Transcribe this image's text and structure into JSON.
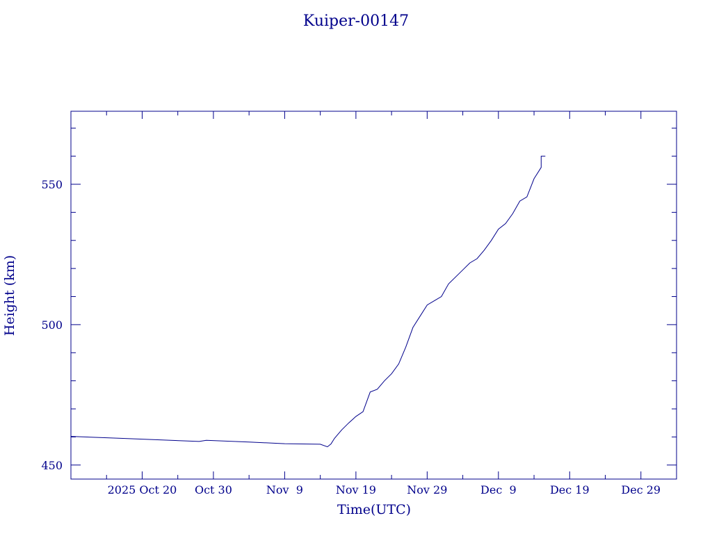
{
  "chart_data": {
    "type": "line",
    "title": "Kuiper-00147",
    "xlabel": "Time(UTC)",
    "ylabel": "Height (km)",
    "x_unit": "date (UTC)",
    "xlim": [
      "2025-10-10",
      "2026-01-03"
    ],
    "ylim": [
      445,
      576
    ],
    "x_ticks": [
      {
        "date": "2025-10-20",
        "label": "2025 Oct 20"
      },
      {
        "date": "2025-10-30",
        "label": "Oct 30"
      },
      {
        "date": "2025-11-09",
        "label": "Nov  9"
      },
      {
        "date": "2025-11-19",
        "label": "Nov 19"
      },
      {
        "date": "2025-11-29",
        "label": "Nov 29"
      },
      {
        "date": "2025-12-09",
        "label": "Dec  9"
      },
      {
        "date": "2025-12-19",
        "label": "Dec 19"
      },
      {
        "date": "2025-12-29",
        "label": "Dec 29"
      }
    ],
    "y_ticks": [
      450,
      500,
      550
    ],
    "grid": false,
    "legend": "none",
    "color": "#00008b",
    "series": [
      {
        "x": [
          "2025-10-10",
          "2025-10-17",
          "2025-10-24",
          "2025-10-28",
          "2025-10-29",
          "2025-11-04",
          "2025-11-09",
          "2025-11-14",
          "2025-11-15",
          "2025-11-15.5",
          "2025-11-16",
          "2025-11-17",
          "2025-11-18",
          "2025-11-19",
          "2025-11-20",
          "2025-11-21",
          "2025-11-22",
          "2025-11-23",
          "2025-11-24",
          "2025-11-25",
          "2025-11-26",
          "2025-11-27",
          "2025-11-28",
          "2025-11-29",
          "2025-11-30",
          "2025-12-01",
          "2025-12-02",
          "2025-12-03",
          "2025-12-04",
          "2025-12-05",
          "2025-12-06",
          "2025-12-07",
          "2025-12-08",
          "2025-12-09",
          "2025-12-10",
          "2025-12-11",
          "2025-12-12",
          "2025-12-13",
          "2025-12-14",
          "2025-12-15"
        ],
        "y": [
          460.2,
          459.5,
          458.8,
          458.4,
          458.8,
          458.2,
          457.6,
          457.4,
          456.5,
          457.5,
          459.5,
          462.5,
          465.0,
          467.3,
          469.0,
          476.0,
          477.0,
          480.0,
          482.5,
          486.0,
          492.0,
          499.0,
          503.0,
          507.0,
          508.5,
          510.0,
          514.5,
          517.0,
          519.5,
          522.0,
          523.5,
          526.5,
          530.0,
          534.0,
          536.0,
          539.5,
          544.0,
          545.5,
          552.0,
          556.0
        ]
      }
    ]
  }
}
